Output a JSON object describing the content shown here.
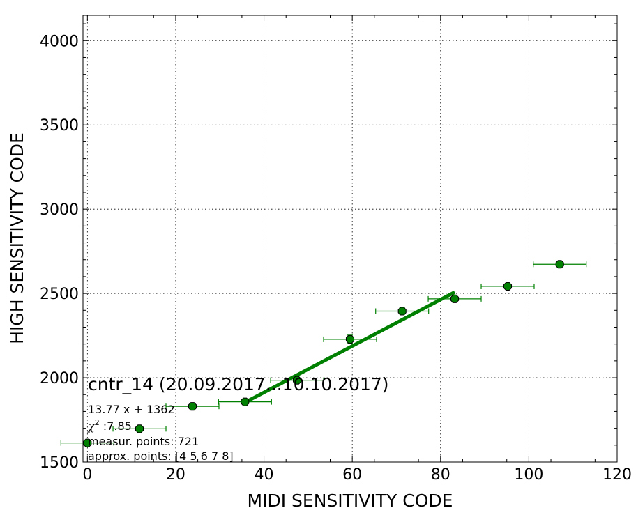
{
  "chart_data": {
    "type": "scatter",
    "xlabel": "MIDI SENSITIVITY CODE",
    "ylabel": "HIGH SENSITIVITY CODE",
    "xlim": [
      -1,
      120
    ],
    "ylim": [
      1500,
      4150
    ],
    "xticks": [
      0,
      20,
      40,
      60,
      80,
      100,
      120
    ],
    "yticks": [
      1500,
      2000,
      2500,
      3000,
      3500,
      4000
    ],
    "grid": true,
    "series": [
      {
        "marker_color": "#008000",
        "points": [
          {
            "x": 0,
            "y": 1613,
            "xerr": 6,
            "yerr": 8
          },
          {
            "x": 11.8,
            "y": 1697,
            "xerr": 6,
            "yerr": 8
          },
          {
            "x": 23.8,
            "y": 1830,
            "xerr": 6,
            "yerr": 8
          },
          {
            "x": 35.7,
            "y": 1857,
            "xerr": 6,
            "yerr": 15
          },
          {
            "x": 47.5,
            "y": 1985,
            "xerr": 6,
            "yerr": 15
          },
          {
            "x": 59.5,
            "y": 2228,
            "xerr": 6,
            "yerr": 25
          },
          {
            "x": 71.3,
            "y": 2395,
            "xerr": 6,
            "yerr": 20
          },
          {
            "x": 83.2,
            "y": 2468,
            "xerr": 6,
            "yerr": 20
          },
          {
            "x": 95.2,
            "y": 2542,
            "xerr": 6,
            "yerr": 15
          },
          {
            "x": 107,
            "y": 2673,
            "xerr": 6,
            "yerr": 12
          }
        ]
      }
    ],
    "fit_line": {
      "slope": 13.77,
      "intercept": 1362,
      "x_range": [
        35.7,
        83.2
      ],
      "color": "#008000"
    },
    "annotations": {
      "title": "cntr_14 (20.09.2017...10.10.2017)",
      "equation": "13.77 x + 1362",
      "chi2_symbol": "χ",
      "chi2_sup": "2",
      "chi2_value": " :7.85",
      "measur": "measur. points: 721",
      "approx": "approx. points: [4 5 6 7 8]"
    }
  }
}
